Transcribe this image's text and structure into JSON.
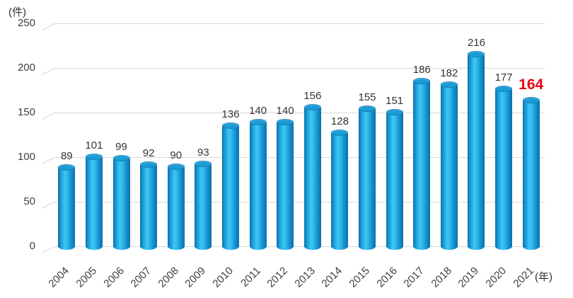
{
  "chart_data": {
    "type": "bar",
    "title": "",
    "categories": [
      "2004",
      "2005",
      "2006",
      "2007",
      "2008",
      "2009",
      "2010",
      "2011",
      "2012",
      "2013",
      "2014",
      "2015",
      "2016",
      "2017",
      "2018",
      "2019",
      "2020",
      "2021"
    ],
    "values": [
      89,
      101,
      99,
      92,
      90,
      93,
      136,
      140,
      140,
      156,
      128,
      155,
      151,
      186,
      182,
      216,
      177,
      164
    ],
    "highlight_index": 17,
    "highlight_value": 164,
    "ylabel": "(件)",
    "xlabel": "(年)",
    "yticks": [
      0,
      50,
      100,
      150,
      200,
      250
    ],
    "ylim": [
      0,
      250
    ],
    "grid": true,
    "legend": false,
    "layout_hint": "3d-cylinder-bars, gridlines with small diagonal depth ticks at left, x labels rotated 45deg",
    "colors": {
      "bar": "#29b6e9",
      "bar_edge": "#0b6fae",
      "bar_top": "#1b9cd6",
      "grid": "#d9d9d9",
      "value_label": "#333333",
      "highlight_label": "#e60012",
      "axis_text": "#404040"
    }
  }
}
